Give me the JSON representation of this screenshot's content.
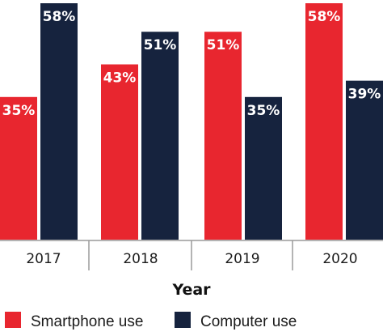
{
  "chart_data": {
    "type": "bar",
    "categories": [
      "2017",
      "2018",
      "2019",
      "2020"
    ],
    "series": [
      {
        "name": "Smartphone use",
        "values": [
          35,
          43,
          51,
          58
        ],
        "labels": [
          "35%",
          "43%",
          "51%",
          "58%"
        ],
        "color": "#e8262f"
      },
      {
        "name": "Computer use",
        "values": [
          58,
          51,
          35,
          39
        ],
        "labels": [
          "58%",
          "51%",
          "35%",
          "39%"
        ],
        "color": "#16233e"
      }
    ],
    "title": "",
    "xlabel": "Year",
    "ylabel": "",
    "ylim": [
      0,
      58
    ],
    "grid": false,
    "legend_position": "bottom-left",
    "axis_color": "#9a9a9a"
  }
}
